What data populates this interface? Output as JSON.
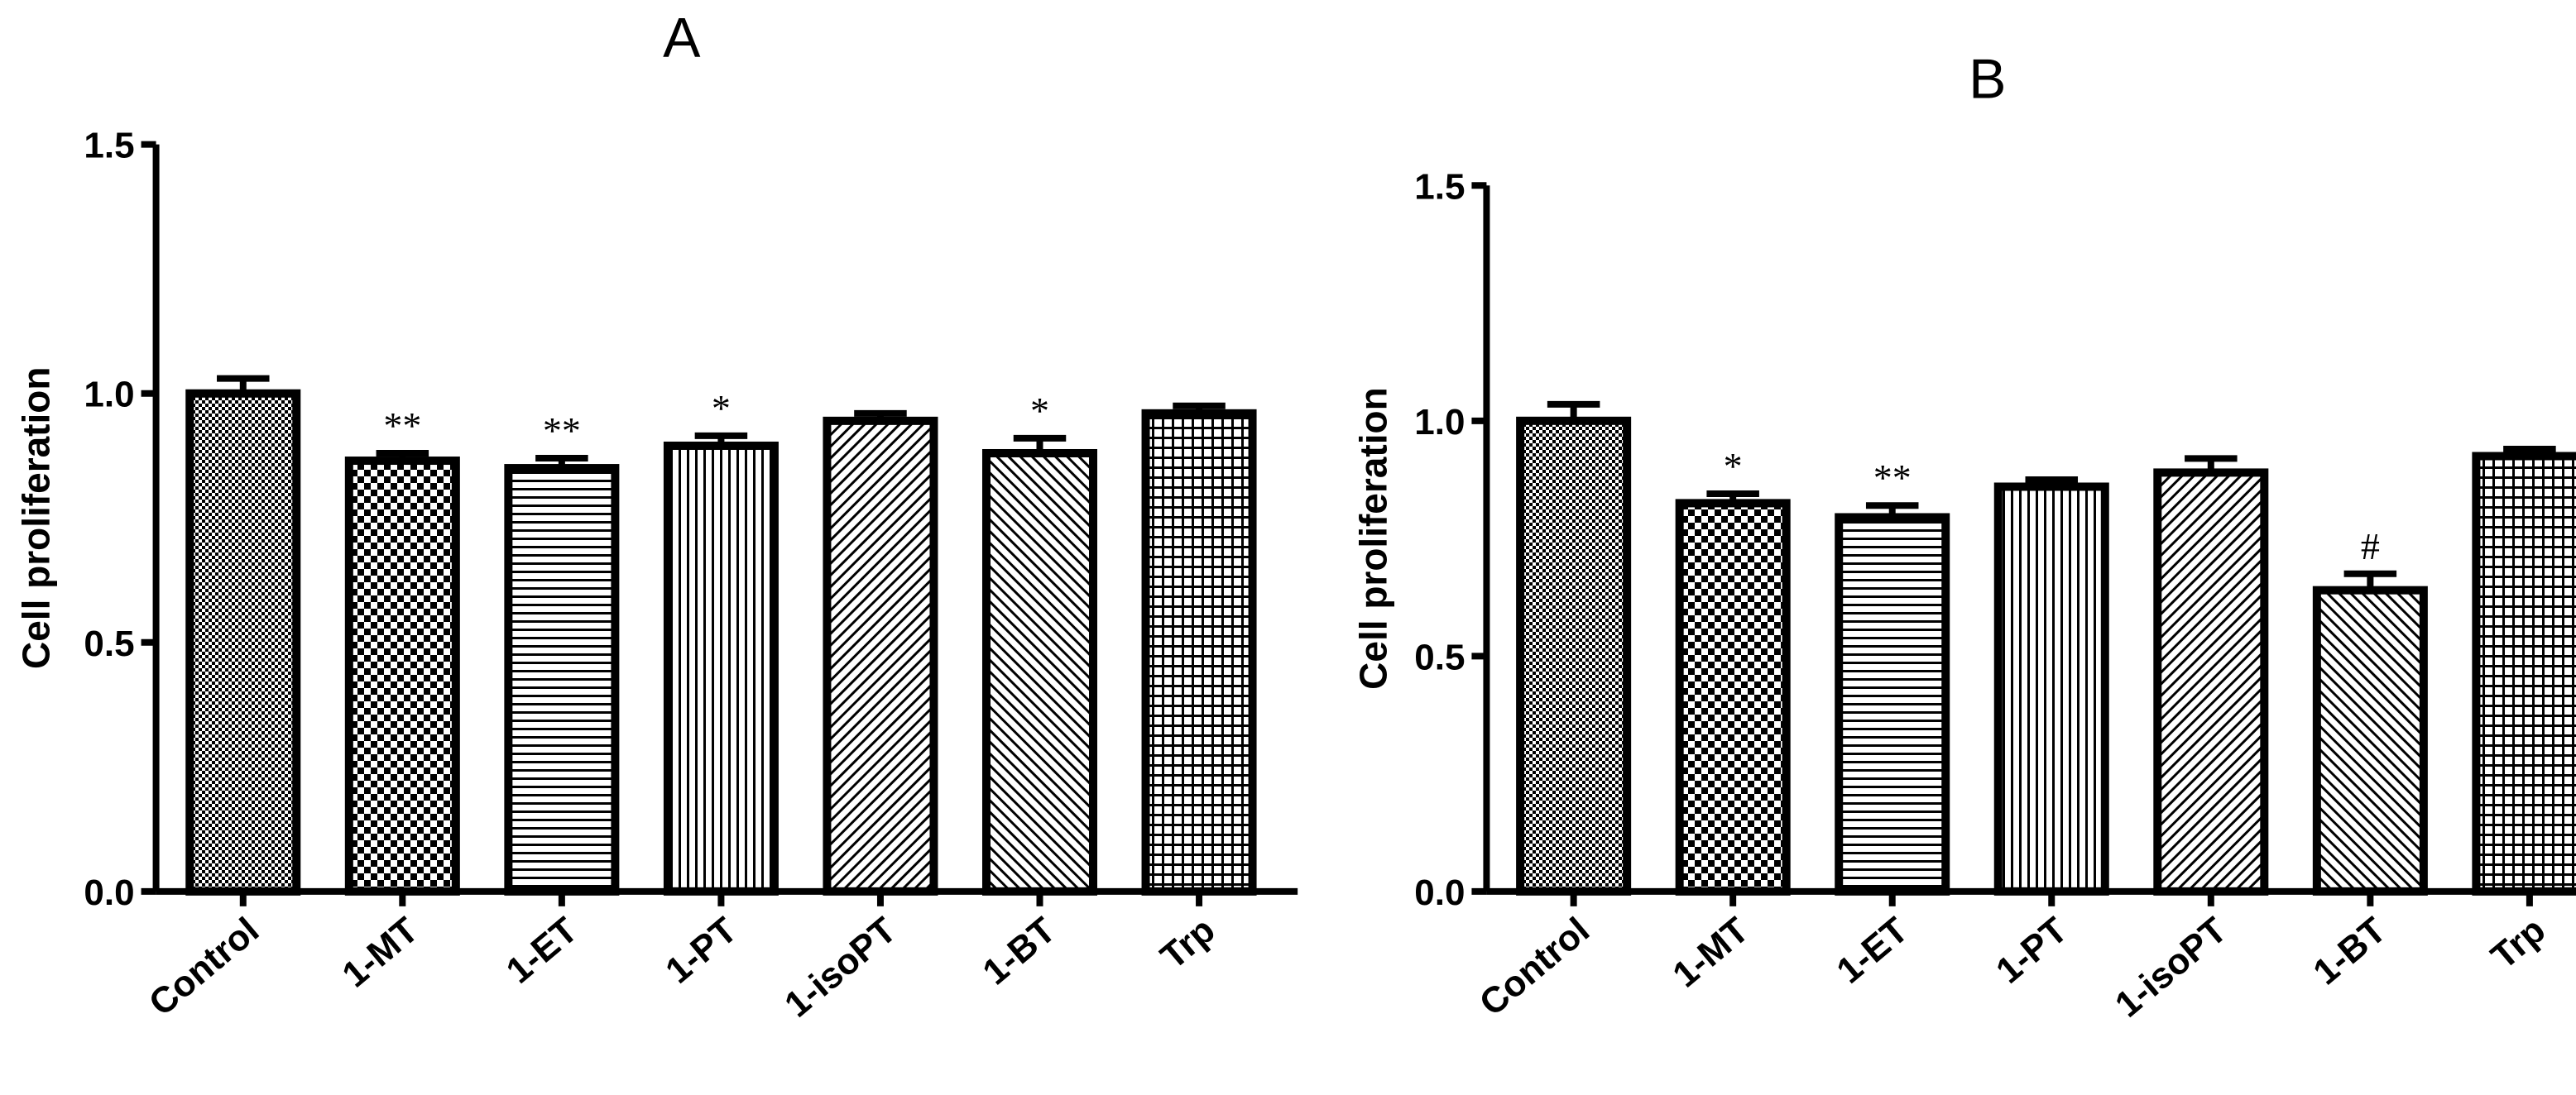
{
  "chart_data": [
    {
      "type": "bar",
      "title": "A",
      "y_label": "Cell proliferation",
      "categories": [
        "Control",
        "1-MT",
        "1-ET",
        "1-PT",
        "1-isoPT",
        "1-BT",
        "Trp"
      ],
      "values": [
        1.0,
        0.865,
        0.85,
        0.895,
        0.945,
        0.88,
        0.96
      ],
      "errors": [
        0.03,
        0.015,
        0.02,
        0.02,
        0.015,
        0.03,
        0.015
      ],
      "annotations": [
        "**",
        "**",
        "*",
        null,
        "*",
        null
      ],
      "annotation_targets": [
        1,
        2,
        3,
        null,
        5,
        null
      ],
      "color": "#000000",
      "ylim": [
        0,
        1.5
      ],
      "yticks": [
        {
          "value": 0,
          "label": "0.0"
        },
        0.5,
        {
          "value": 1,
          "label": "1.0"
        },
        1.5
      ]
    },
    {
      "type": "bar",
      "title": "B",
      "y_label": "Cell proliferation",
      "categories": [
        "Control",
        "1-MT",
        "1-ET",
        "1-PT",
        "1-isoPT",
        "1-BT",
        "Trp"
      ],
      "values": [
        1.0,
        0.825,
        0.795,
        0.86,
        0.89,
        0.64,
        0.925
      ],
      "errors": [
        0.035,
        0.02,
        0.025,
        0.015,
        0.03,
        0.035,
        0.015
      ],
      "annotations": [
        "*",
        "**",
        "#"
      ],
      "annotation_targets": [
        1,
        2,
        5
      ],
      "color": "#000000",
      "ylim": [
        0,
        1.5
      ],
      "yticks": [
        {
          "value": 0,
          "label": "0.0"
        },
        0.5,
        {
          "value": 1,
          "label": "1.0"
        },
        1.5
      ]
    }
  ]
}
